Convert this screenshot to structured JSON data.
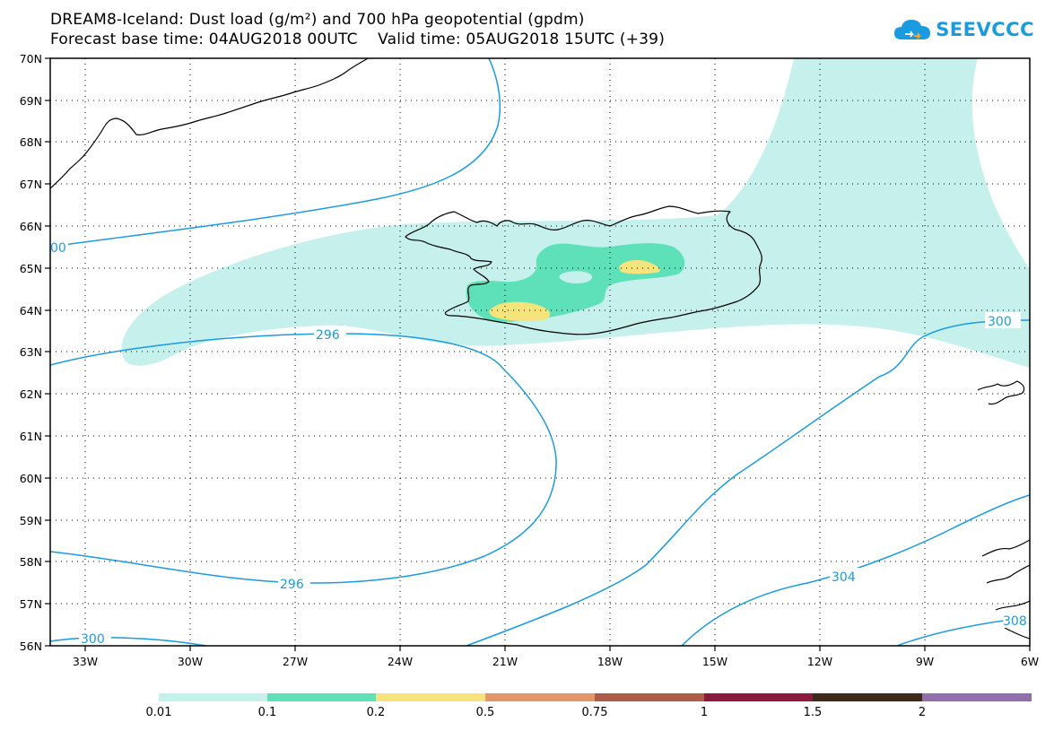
{
  "header": {
    "title_line1": "DREAM8-Iceland: Dust load (g/m²) and 700 hPa geopotential (gpdm)",
    "title_line2": "Forecast base time: 04AUG2018 00UTC    Valid time: 05AUG2018 15UTC (+39)"
  },
  "logo": {
    "text": "SEEVCCC",
    "icon": "cloud-icon",
    "color": "#1a9be0"
  },
  "map": {
    "lat_labels": [
      "70N",
      "69N",
      "68N",
      "67N",
      "66N",
      "65N",
      "64N",
      "63N",
      "62N",
      "61N",
      "60N",
      "59N",
      "58N",
      "57N",
      "56N"
    ],
    "lon_labels": [
      "33W",
      "30W",
      "27W",
      "24W",
      "21W",
      "18W",
      "15W",
      "12W",
      "9W",
      "6W"
    ],
    "lat_range": [
      56,
      70
    ],
    "lon_range": [
      -34.3,
      -6
    ],
    "grid": "dotted",
    "contour_labels": [
      "00",
      "296",
      "300",
      "296",
      "300",
      "304",
      "308"
    ],
    "colors": {
      "contour": "#1a9be0",
      "coast": "#000000"
    }
  },
  "colorbar": {
    "labels": [
      "0.01",
      "0.1",
      "0.2",
      "0.5",
      "0.75",
      "1",
      "1.5",
      "2"
    ],
    "colors": [
      "#c5f0ec",
      "#5ee0b8",
      "#f5e47c",
      "#e59566",
      "#b05a4e",
      "#8b1a3c",
      "#3d2a18",
      "#9070a8"
    ]
  }
}
